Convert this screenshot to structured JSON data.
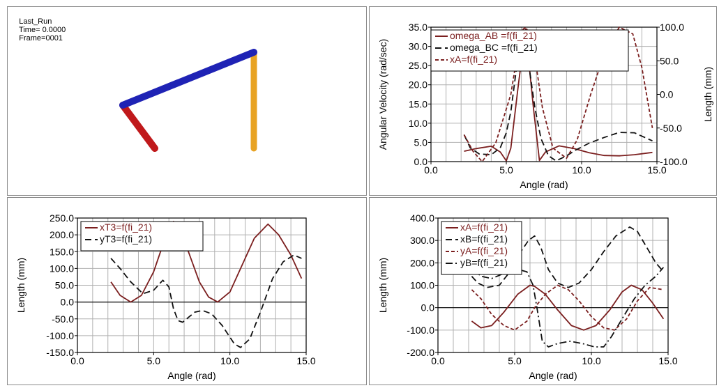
{
  "animation": {
    "run_name": "Last_Run",
    "time_label": "Time=",
    "time_value": "0.0000",
    "frame_label": "Frame=",
    "frame_value": "0001",
    "link_colors": {
      "crank": "#c0191b",
      "coupler": "#1f23b5",
      "rocker": "#e8a323"
    }
  },
  "chart_data": [
    {
      "type": "line",
      "xlabel": "Angle (rad)",
      "ylabel": "Angular Velocity (rad/sec)",
      "y2label": "Length (mm)",
      "xlim": [
        0,
        15
      ],
      "ylim": [
        0,
        35
      ],
      "y2lim": [
        -100,
        100
      ],
      "xticks": [
        "0.0",
        "5.0",
        "10.0",
        "15.0"
      ],
      "yticks": [
        "0.0",
        "5.0",
        "10.0",
        "15.0",
        "20.0",
        "25.0",
        "30.0",
        "35.0"
      ],
      "y2ticks": [
        "-100.0",
        "-50.0",
        "0.0",
        "50.0",
        "100.0"
      ],
      "grid": true,
      "legend": "top-left",
      "series": [
        {
          "name": "omega_AB =f(fi_21)",
          "axis": "left",
          "color": "#7b1f1f",
          "dash": "solid",
          "x": [
            2.2,
            3,
            4,
            4.6,
            5.0,
            5.3,
            5.8,
            6.28,
            6.8,
            7.2,
            7.6,
            8.5,
            9.5,
            10.5,
            11.5,
            12.5,
            13.5,
            14.7
          ],
          "y": [
            2.7,
            3.4,
            4.0,
            2.5,
            0.2,
            3.5,
            20,
            34.5,
            14,
            0.3,
            2.5,
            4.1,
            3.4,
            2.3,
            1.6,
            1.5,
            1.8,
            2.4
          ]
        },
        {
          "name": "omega_BC =f(fi_21)",
          "axis": "left",
          "color": "#111111",
          "dash": "dashed",
          "x": [
            2.2,
            2.6,
            3.2,
            4,
            4.6,
            5.0,
            5.3,
            5.7,
            6.1,
            6.3,
            6.5,
            6.9,
            7.3,
            7.8,
            8.3,
            9.0,
            9.6,
            10.5,
            11.5,
            12.5,
            13.5,
            14.7
          ],
          "y": [
            7.0,
            3.6,
            2.0,
            1.8,
            3.6,
            7.5,
            13,
            25,
            32,
            30,
            25,
            14,
            6,
            1.5,
            0.2,
            1.5,
            3.0,
            4.8,
            6.3,
            7.6,
            7.5,
            5.4
          ]
        },
        {
          "name": "xA=f(fi_21)",
          "axis": "right",
          "color": "#7b1f1f",
          "dash": "short-dash",
          "x": [
            2.2,
            2.8,
            3.4,
            4.3,
            5.3,
            5.7,
            6.0,
            6.3,
            6.6,
            7.0,
            7.4,
            8.1,
            9.0,
            9.7,
            10.6,
            11.5,
            12.5,
            13.4,
            14.0,
            14.7
          ],
          "y": [
            -60,
            -85,
            -100,
            -72,
            0,
            55,
            95,
            100,
            85,
            40,
            -20,
            -80,
            -95,
            -68,
            0,
            60,
            100,
            90,
            40,
            -50
          ]
        }
      ]
    },
    {
      "type": "line",
      "xlabel": "Angle (rad)",
      "ylabel": "Length (mm)",
      "xlim": [
        0,
        15
      ],
      "ylim": [
        -150,
        250
      ],
      "xticks": [
        "0.0",
        "5.0",
        "10.0",
        "15.0"
      ],
      "yticks": [
        "-150.0",
        "-100.0",
        "-50.0",
        "0.0",
        "50.0",
        "100.0",
        "150.0",
        "200.0",
        "250.0"
      ],
      "grid": true,
      "legend": "top-left",
      "series": [
        {
          "name": "xT3=f(fi_21)",
          "color": "#7b1f1f",
          "dash": "solid",
          "x": [
            2.2,
            2.8,
            3.5,
            4.2,
            5.0,
            5.6,
            6.0,
            6.3,
            6.6,
            7.2,
            8.0,
            8.6,
            9.2,
            10.0,
            10.8,
            11.6,
            12.5,
            13.2,
            14.0,
            14.7
          ],
          "y": [
            60,
            20,
            0,
            20,
            90,
            170,
            225,
            240,
            225,
            160,
            60,
            15,
            0,
            30,
            110,
            190,
            232,
            200,
            140,
            70
          ]
        },
        {
          "name": "yT3=f(fi_21)",
          "color": "#111111",
          "dash": "dashed",
          "x": [
            2.2,
            2.8,
            3.5,
            4.3,
            5.0,
            5.6,
            6.0,
            6.3,
            6.6,
            6.9,
            7.3,
            7.7,
            8.2,
            8.8,
            9.5,
            10.3,
            10.7,
            11.3,
            12.0,
            12.8,
            13.5,
            14.2,
            14.7
          ],
          "y": [
            130,
            100,
            60,
            25,
            35,
            65,
            45,
            -20,
            -55,
            -60,
            -45,
            -30,
            -25,
            -35,
            -70,
            -125,
            -135,
            -110,
            -30,
            70,
            120,
            140,
            130
          ]
        }
      ]
    },
    {
      "type": "line",
      "xlabel": "Angle (rad)",
      "ylabel": "Length (mm)",
      "xlim": [
        0,
        15
      ],
      "ylim": [
        -200,
        400
      ],
      "xticks": [
        "0.0",
        "5.0",
        "10.0",
        "15.0"
      ],
      "yticks": [
        "-200.0",
        "-100.0",
        "0.0",
        "100.0",
        "200.0",
        "300.0",
        "400.0"
      ],
      "grid": true,
      "legend": "top-left",
      "series": [
        {
          "name": "xA=f(fi_21)",
          "color": "#7b1f1f",
          "dash": "solid",
          "x": [
            2.2,
            2.8,
            3.5,
            4.3,
            5.2,
            6.0,
            6.3,
            7.0,
            7.8,
            8.7,
            9.5,
            10.3,
            11.2,
            12.0,
            12.6,
            13.3,
            14.0,
            14.7
          ],
          "y": [
            -60,
            -90,
            -80,
            -20,
            60,
            100,
            95,
            60,
            -10,
            -80,
            -100,
            -80,
            -10,
            70,
            100,
            80,
            20,
            -50
          ]
        },
        {
          "name": "xB=f(fi_21)",
          "color": "#111111",
          "dash": "dashed",
          "x": [
            2.2,
            2.6,
            3.2,
            4.0,
            4.8,
            5.4,
            5.9,
            6.3,
            6.7,
            7.2,
            7.8,
            8.5,
            9.2,
            10.0,
            10.8,
            11.6,
            12.5,
            13.0,
            13.6,
            14.2,
            14.7
          ],
          "y": [
            140,
            110,
            90,
            100,
            170,
            250,
            300,
            320,
            270,
            170,
            110,
            90,
            110,
            170,
            250,
            320,
            360,
            340,
            270,
            200,
            160
          ]
        },
        {
          "name": "yA=f(fi_21)",
          "color": "#7b1f1f",
          "dash": "short-dash",
          "x": [
            2.2,
            2.8,
            3.5,
            4.3,
            5.0,
            5.8,
            6.3,
            7.0,
            7.8,
            8.5,
            9.2,
            10.0,
            10.8,
            11.5,
            12.3,
            13.0,
            13.8,
            14.7
          ],
          "y": [
            80,
            40,
            -30,
            -80,
            -100,
            -60,
            0,
            60,
            100,
            80,
            30,
            -40,
            -90,
            -100,
            -50,
            30,
            90,
            80
          ]
        },
        {
          "name": "yB=f(fi_21)",
          "color": "#111111",
          "dash": "dash-dot",
          "x": [
            2.2,
            2.8,
            3.5,
            4.2,
            5.0,
            5.8,
            6.2,
            6.5,
            6.8,
            7.2,
            7.8,
            8.6,
            9.4,
            10.2,
            10.8,
            11.3,
            12.0,
            12.8,
            13.5,
            14.2,
            14.7
          ],
          "y": [
            180,
            140,
            130,
            150,
            175,
            160,
            100,
            -20,
            -150,
            -175,
            -160,
            -150,
            -160,
            -175,
            -175,
            -130,
            -50,
            40,
            100,
            140,
            180
          ]
        }
      ]
    }
  ]
}
